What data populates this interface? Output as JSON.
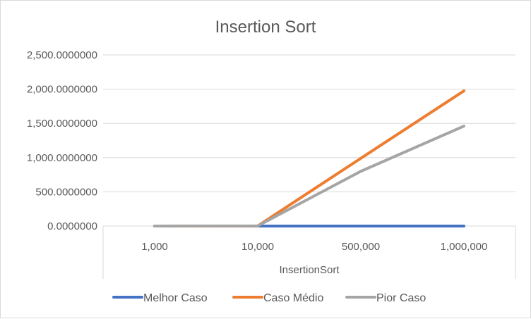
{
  "chart_data": {
    "type": "line",
    "title": "Insertion Sort",
    "xlabel": "InsertionSort",
    "ylabel": "",
    "categories": [
      "1,000",
      "10,000",
      "500,000",
      "1,000,000"
    ],
    "ylim": [
      0,
      2500
    ],
    "yticks": [
      0,
      500,
      1000,
      1500,
      2000,
      2500
    ],
    "ytick_labels": [
      "0.0000000",
      "500.0000000",
      "1,000.0000000",
      "1,500.0000000",
      "2,000.0000000",
      "2,500.0000000"
    ],
    "grid": true,
    "legend_position": "bottom",
    "series": [
      {
        "name": "Melhor Caso",
        "color": "#4472c4",
        "values": [
          0,
          0,
          0,
          0
        ]
      },
      {
        "name": "Caso Médio",
        "color": "#ed7d31",
        "values": [
          0.2,
          1.5,
          990,
          1975
        ]
      },
      {
        "name": "Pior Caso",
        "color": "#a5a5a5",
        "values": [
          0.3,
          2.5,
          800,
          1460
        ]
      }
    ]
  }
}
